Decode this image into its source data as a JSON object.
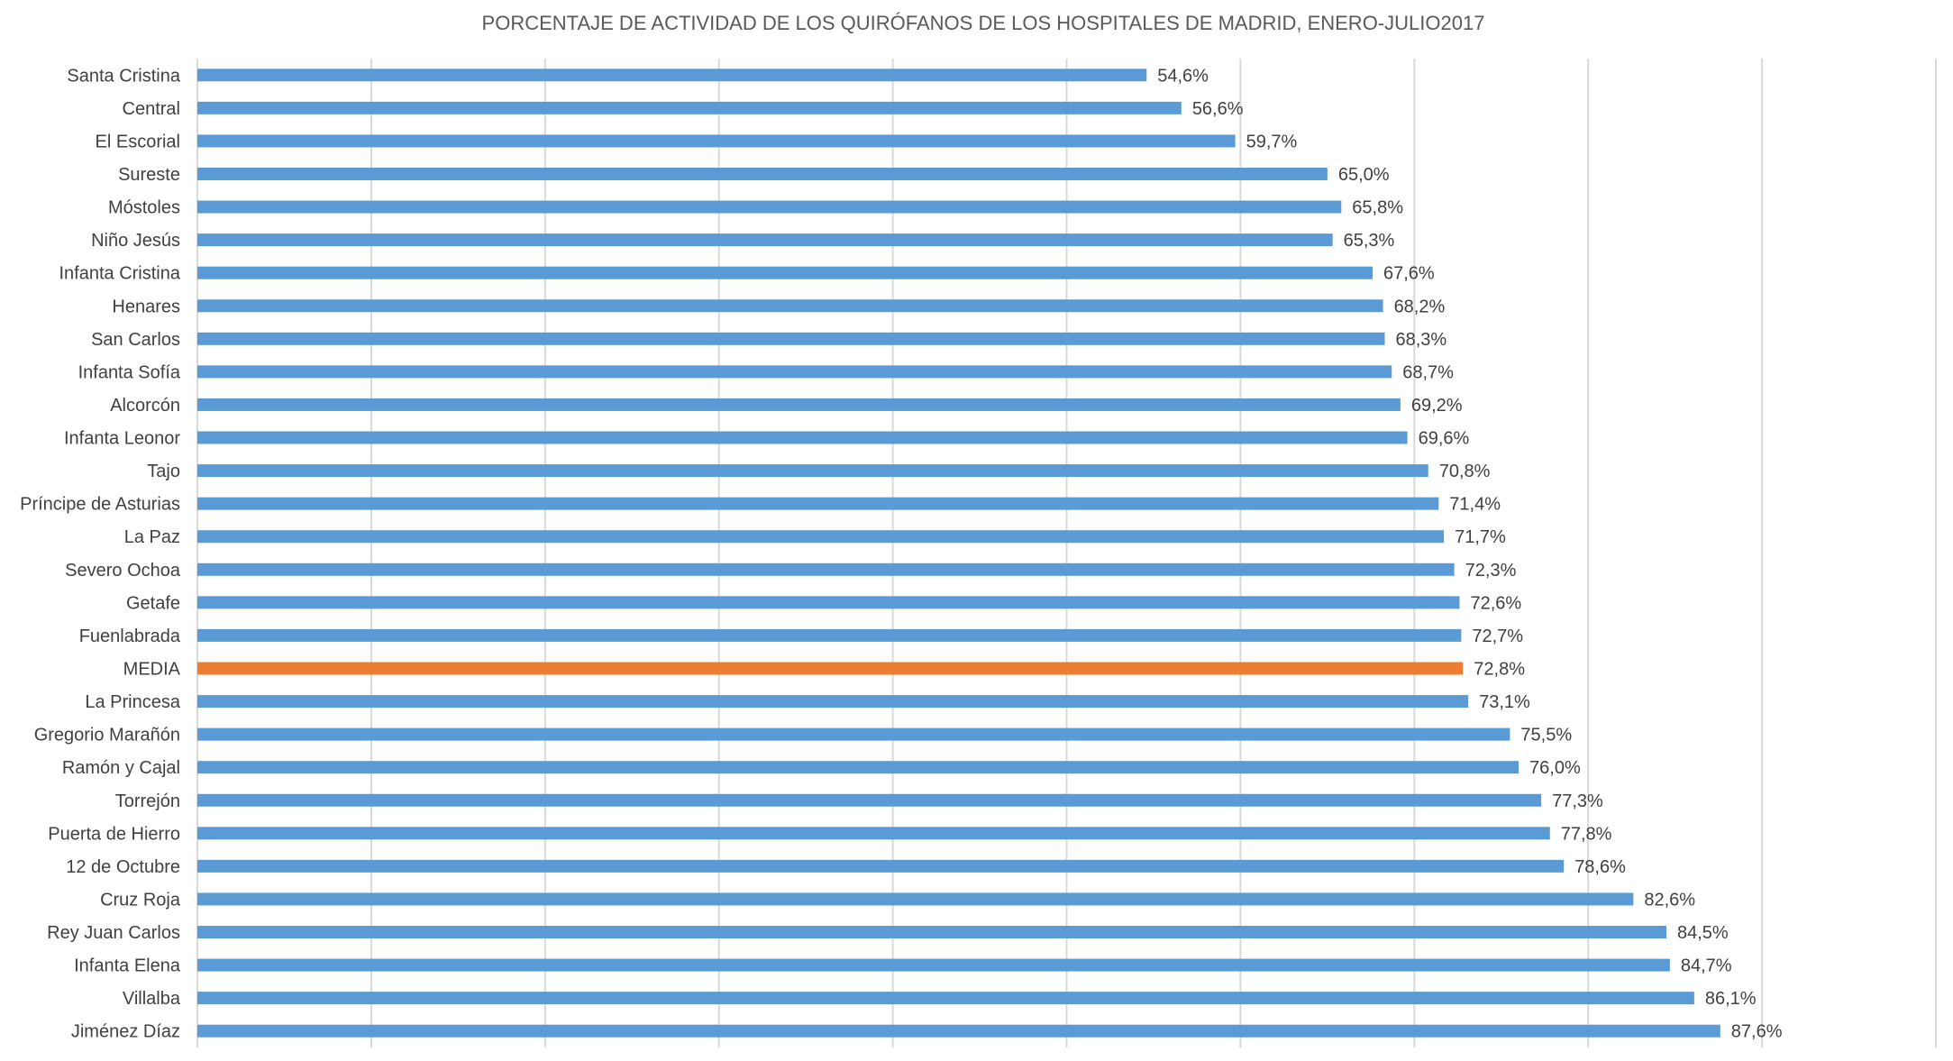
{
  "chart_data": {
    "type": "bar",
    "orientation": "horizontal",
    "title": "PORCENTAJE DE ACTIVIDAD DE LOS QUIRÓFANOS DE LOS HOSPITALES DE MADRID, ENERO-JULIO2017",
    "xlabel": "",
    "ylabel": "",
    "xlim": [
      0,
      100
    ],
    "grid": true,
    "legend": "none",
    "colors": {
      "default": "#5B9BD5",
      "highlight": "#ED7D31",
      "grid": "#D9D9D9"
    },
    "highlight_category": "MEDIA",
    "categories": [
      "Santa Cristina",
      "Central",
      "El Escorial",
      "Sureste",
      "Móstoles",
      "Niño Jesús",
      "Infanta Cristina",
      "Henares",
      "San Carlos",
      "Infanta Sofía",
      "Alcorcón",
      "Infanta Leonor",
      "Tajo",
      "Príncipe de Asturias",
      "La Paz",
      "Severo Ochoa",
      "Getafe",
      "Fuenlabrada",
      "MEDIA",
      "La Princesa",
      "Gregorio Marañón",
      "Ramón y Cajal",
      "Torrejón",
      "Puerta de Hierro",
      "12 de Octubre",
      "Cruz Roja",
      "Rey Juan Carlos",
      "Infanta Elena",
      "Villalba",
      "Jiménez Díaz"
    ],
    "values": [
      54.6,
      56.6,
      59.7,
      65.0,
      65.8,
      65.3,
      67.6,
      68.2,
      68.3,
      68.7,
      69.2,
      69.6,
      70.8,
      71.4,
      71.7,
      72.3,
      72.6,
      72.7,
      72.8,
      73.1,
      75.5,
      76.0,
      77.3,
      77.8,
      78.6,
      82.6,
      84.5,
      84.7,
      86.1,
      87.6
    ],
    "data_labels": [
      "54,6%",
      "56,6%",
      "59,7%",
      "65,0%",
      "65,8%",
      "65,3%",
      "67,6%",
      "68,2%",
      "68,3%",
      "68,7%",
      "69,2%",
      "69,6%",
      "70,8%",
      "71,4%",
      "71,7%",
      "72,3%",
      "72,6%",
      "72,7%",
      "72,8%",
      "73,1%",
      "75,5%",
      "76,0%",
      "77,3%",
      "77,8%",
      "78,6%",
      "82,6%",
      "84,5%",
      "84,7%",
      "86,1%",
      "87,6%"
    ]
  }
}
